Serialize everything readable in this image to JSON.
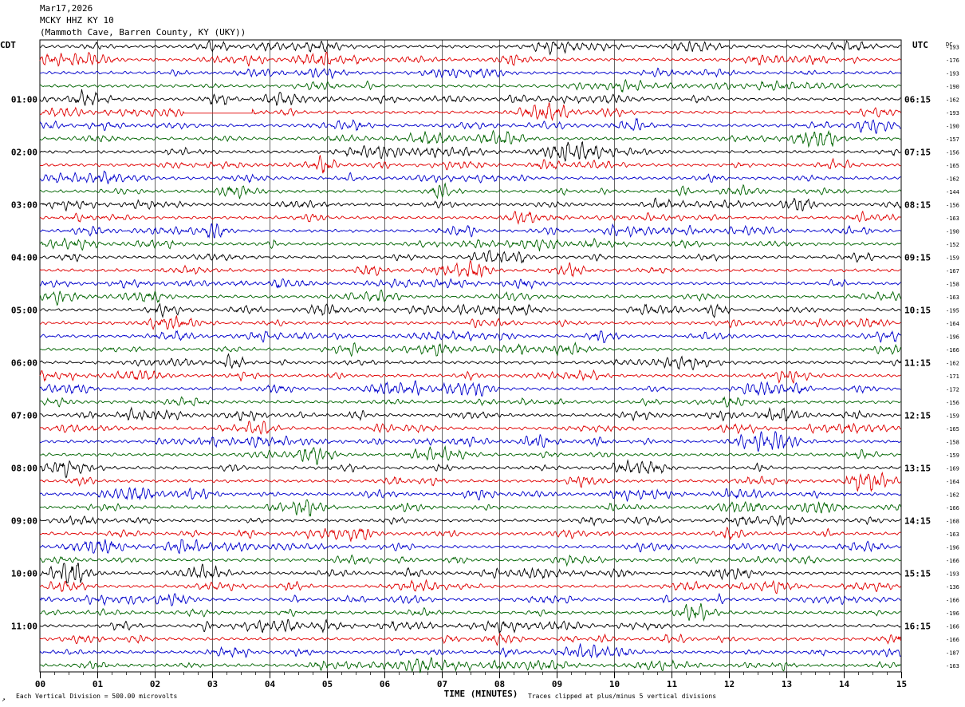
{
  "header": {
    "date": "Mar17,2026",
    "station": "MCKY HHZ KY 10",
    "location": "(Mammoth Cave, Barren County, KY (UKY))"
  },
  "left_zone_label": "CDT",
  "right_zone_label": "UTC",
  "dc_label": "DC",
  "footer": {
    "scale_note": "Each Vertical Division =  500.00 microvolts",
    "clip_note": "Traces clipped at plus/minus 5 vertical divisions",
    "corner_mark": "↗"
  },
  "colors": {
    "cycle": [
      "#000000",
      "#e00000",
      "#0000cc",
      "#006400"
    ],
    "gap_segment": "#e00000"
  },
  "chart_data": {
    "type": "line",
    "xlabel": "TIME (MINUTES)",
    "xlim": [
      0,
      15
    ],
    "x_ticks": [
      "00",
      "01",
      "02",
      "03",
      "04",
      "05",
      "06",
      "07",
      "08",
      "09",
      "10",
      "11",
      "12",
      "13",
      "14",
      "15"
    ],
    "trace_count": 48,
    "minutes_per_trace": 15,
    "hour_labels_left": [
      "01:00",
      "02:00",
      "03:00",
      "04:00",
      "05:00",
      "06:00",
      "07:00",
      "08:00",
      "09:00",
      "10:00",
      "11:00"
    ],
    "hour_labels_right": [
      "06:15",
      "07:15",
      "08:15",
      "09:15",
      "10:15",
      "11:15",
      "12:15",
      "13:15",
      "14:15",
      "15:15",
      "16:15"
    ],
    "first_labeled_trace": 4,
    "dc_offsets": [
      "-193",
      "-176",
      "-193",
      "-190",
      "-162",
      "-193",
      "-190",
      "-157",
      "-156",
      "-165",
      "-162",
      "-144",
      "-156",
      "-163",
      "-190",
      "-152",
      "-159",
      "-167",
      "-158",
      "-163",
      "-195",
      "-164",
      "-196",
      "-166",
      "-162",
      "-171",
      "-172",
      "-156",
      "-159",
      "-165",
      "-158",
      "-159",
      "-169",
      "-164",
      "-162",
      "-166",
      "-168",
      "-163",
      "-196",
      "-166",
      "-193",
      "-136",
      "-166",
      "-196",
      "-166",
      "-166",
      "-187",
      "-163"
    ],
    "gap": {
      "trace": 5,
      "start_min": 2.5,
      "end_min": 3.7
    }
  }
}
